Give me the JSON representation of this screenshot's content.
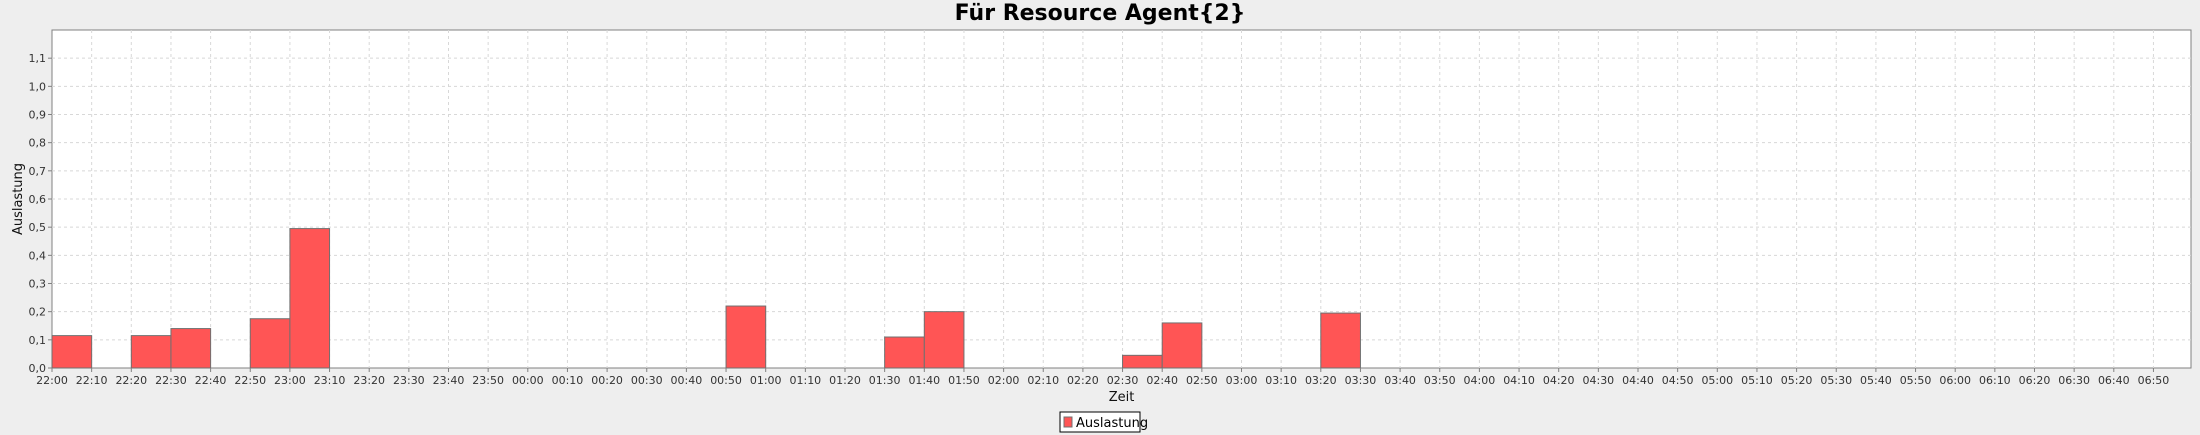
{
  "chart_data": {
    "type": "bar",
    "title": "Für Resource Agent{2}",
    "xlabel": "Zeit",
    "ylabel": "Auslastung",
    "ylim": [
      0,
      1.2
    ],
    "yticks": [
      "0,0",
      "0,1",
      "0,2",
      "0,3",
      "0,4",
      "0,5",
      "0,6",
      "0,7",
      "0,8",
      "0,9",
      "1,0",
      "1,1"
    ],
    "categories": [
      "22:00",
      "22:10",
      "22:20",
      "22:30",
      "22:40",
      "22:50",
      "23:00",
      "23:10",
      "23:20",
      "23:30",
      "23:40",
      "23:50",
      "00:00",
      "00:10",
      "00:20",
      "00:30",
      "00:40",
      "00:50",
      "01:00",
      "01:10",
      "01:20",
      "01:30",
      "01:40",
      "01:50",
      "02:00",
      "02:10",
      "02:20",
      "02:30",
      "02:40",
      "02:50",
      "03:00",
      "03:10",
      "03:20",
      "03:30",
      "03:40",
      "03:50",
      "04:00",
      "04:10",
      "04:20",
      "04:30",
      "04:40",
      "04:50",
      "05:00",
      "05:10",
      "05:20",
      "05:30",
      "05:40",
      "05:50",
      "06:00",
      "06:10",
      "06:20",
      "06:30",
      "06:40",
      "06:50"
    ],
    "series": [
      {
        "name": "Auslastung",
        "color": "#ff5555",
        "values": [
          0.115,
          0,
          0.115,
          0.14,
          0,
          0.175,
          0.495,
          0,
          0,
          0,
          0,
          0,
          0,
          0,
          0,
          0,
          0,
          0.22,
          0,
          0,
          0,
          0.11,
          0.2,
          0,
          0,
          0,
          0,
          0.045,
          0.16,
          0,
          0,
          0,
          0.195,
          0,
          0,
          0,
          0,
          0,
          0,
          0,
          0,
          0,
          0,
          0,
          0,
          0,
          0,
          0,
          0,
          0,
          0,
          0,
          0,
          0
        ]
      }
    ],
    "grid": true,
    "legend_position": "bottom"
  }
}
